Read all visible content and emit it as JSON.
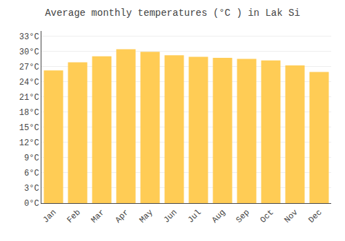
{
  "chart_data": {
    "type": "bar",
    "title": "Average monthly temperatures (°C ) in Lak Si",
    "categories": [
      "Jan",
      "Feb",
      "Mar",
      "Apr",
      "May",
      "Jun",
      "Jul",
      "Aug",
      "Sep",
      "Oct",
      "Nov",
      "Dec"
    ],
    "values": [
      26.2,
      27.8,
      29.0,
      30.4,
      29.9,
      29.2,
      28.9,
      28.7,
      28.5,
      28.2,
      27.2,
      25.9
    ],
    "color": "#FFCC55",
    "ylim": [
      0,
      34
    ],
    "yticks": [
      {
        "value": 0,
        "label": "0°C"
      },
      {
        "value": 3,
        "label": "3°C"
      },
      {
        "value": 6,
        "label": "6°C"
      },
      {
        "value": 9,
        "label": "9°C"
      },
      {
        "value": 12,
        "label": "12°C"
      },
      {
        "value": 15,
        "label": "15°C"
      },
      {
        "value": 18,
        "label": "18°C"
      },
      {
        "value": 21,
        "label": "21°C"
      },
      {
        "value": 24,
        "label": "24°C"
      },
      {
        "value": 27,
        "label": "27°C"
      },
      {
        "value": 30,
        "label": "30°C"
      },
      {
        "value": 33,
        "label": "33°C"
      }
    ],
    "grid": true
  }
}
